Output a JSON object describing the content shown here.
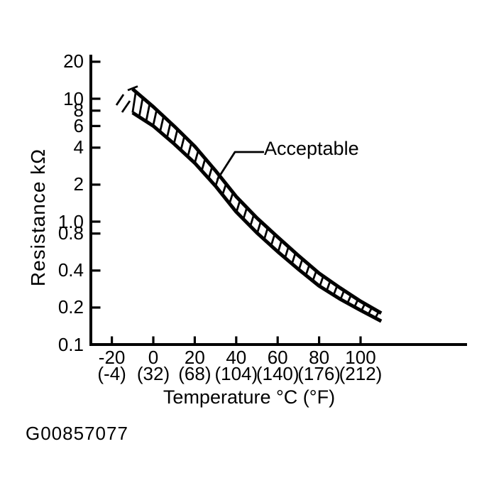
{
  "figure": {
    "id_code": "G00857077"
  },
  "chart_data": {
    "type": "area",
    "ylabel": "Resistance kΩ",
    "xlabel": "Temperature °C (°F)",
    "y_scale": "log",
    "grid": false,
    "ylim_kohm": [
      0.1,
      20
    ],
    "xlim_c": [
      -30,
      150
    ],
    "y_ticks": [
      20,
      10,
      8,
      6,
      4,
      2,
      1.0,
      0.8,
      0.4,
      0.2,
      0.1
    ],
    "y_tick_labels": [
      "20",
      "10",
      "8",
      "6",
      "4",
      "2",
      "1.0",
      "0.8",
      "0.4",
      "0.2",
      "0.1"
    ],
    "x_ticks_c": [
      -20,
      0,
      20,
      40,
      60,
      80,
      100
    ],
    "x_tick_labels_c": [
      "-20",
      "0",
      "20",
      "40",
      "60",
      "80",
      "100"
    ],
    "x_tick_labels_f": [
      "(-4)",
      "(32)",
      "(68)",
      "(104)",
      "(140)",
      "(176)",
      "(212)"
    ],
    "band": {
      "label": "Acceptable",
      "temperature_c": [
        -10,
        0,
        10,
        20,
        30,
        40,
        50,
        60,
        70,
        80,
        90,
        100,
        110
      ],
      "upper_kohm": [
        12,
        8.6,
        6.0,
        4.1,
        2.6,
        1.6,
        1.07,
        0.75,
        0.53,
        0.38,
        0.29,
        0.225,
        0.18
      ],
      "lower_kohm": [
        7.7,
        6.0,
        4.3,
        3.0,
        1.95,
        1.2,
        0.81,
        0.57,
        0.41,
        0.3,
        0.235,
        0.19,
        0.155
      ]
    }
  }
}
